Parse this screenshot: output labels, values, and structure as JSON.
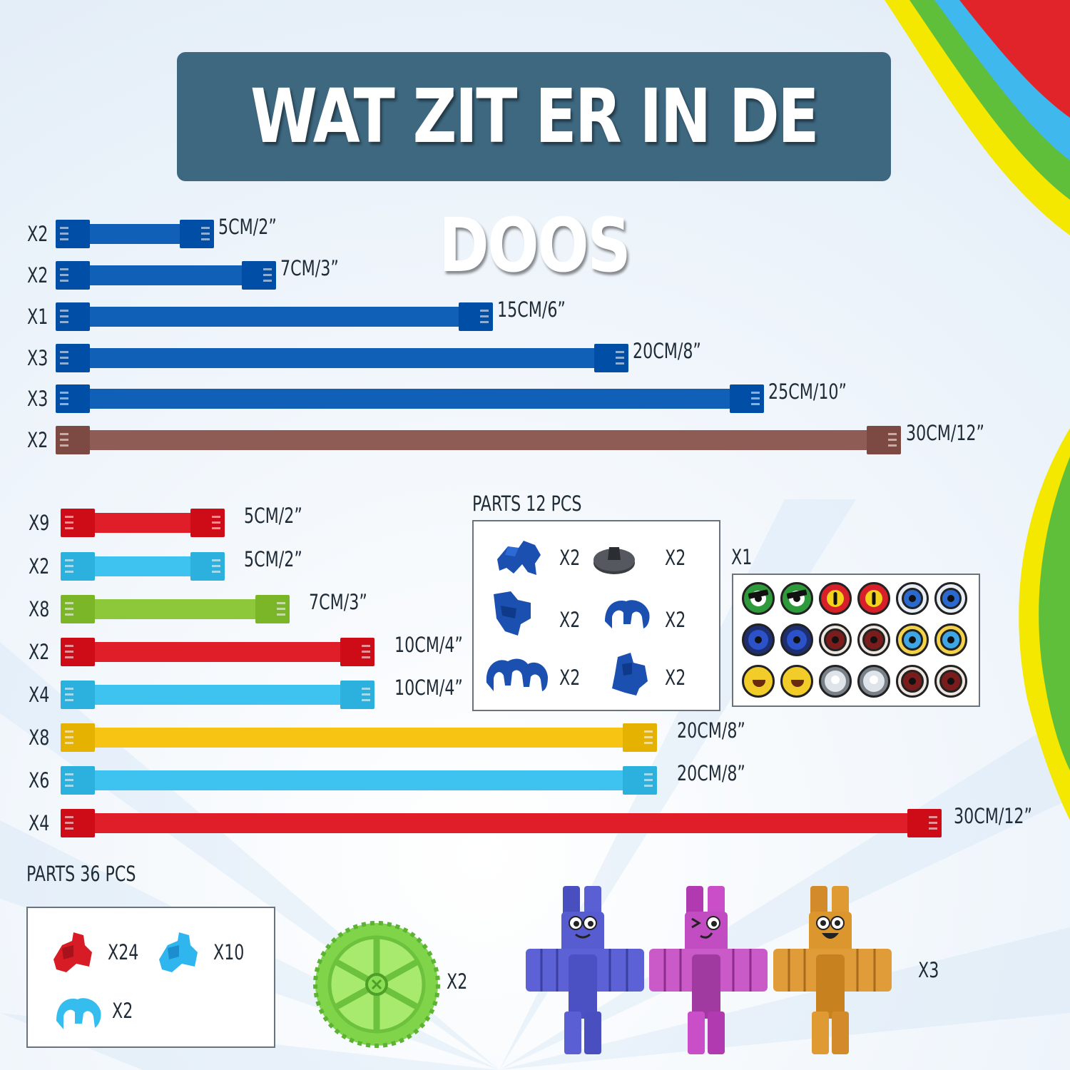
{
  "title": "WAT ZIT ER IN DE DOOS",
  "colors": {
    "blue": "#1060b8",
    "brown": "#8e5c54",
    "red": "#e01e2a",
    "light_blue": "#3ec3f0",
    "green": "#8cc83a",
    "yellow": "#f8c414",
    "title_bg": "#3e6880"
  },
  "rods_top": [
    {
      "qty": "X2",
      "length": "5CM/2”",
      "color": "blue"
    },
    {
      "qty": "X2",
      "length": "7CM/3”",
      "color": "blue"
    },
    {
      "qty": "X1",
      "length": "15CM/6”",
      "color": "blue"
    },
    {
      "qty": "X3",
      "length": "20CM/8”",
      "color": "blue"
    },
    {
      "qty": "X3",
      "length": "25CM/10”",
      "color": "blue"
    },
    {
      "qty": "X2",
      "length": "30CM/12”",
      "color": "brown"
    }
  ],
  "rods_bottom": [
    {
      "qty": "X9",
      "length": "5CM/2”",
      "color": "red"
    },
    {
      "qty": "X2",
      "length": "5CM/2”",
      "color": "light_blue"
    },
    {
      "qty": "X8",
      "length": "7CM/3”",
      "color": "green"
    },
    {
      "qty": "X2",
      "length": "10CM/4”",
      "color": "red"
    },
    {
      "qty": "X4",
      "length": "10CM/4”",
      "color": "light_blue"
    },
    {
      "qty": "X8",
      "length": "20CM/8”",
      "color": "yellow"
    },
    {
      "qty": "X6",
      "length": "20CM/8”",
      "color": "light_blue"
    },
    {
      "qty": "X4",
      "length": "30CM/12”",
      "color": "red"
    }
  ],
  "parts_12": {
    "label": "PARTS  12 PCS",
    "items": [
      {
        "icon": "blue-connector-icon",
        "qty": "X2"
      },
      {
        "icon": "grey-base-icon",
        "qty": "X2"
      },
      {
        "icon": "blue-clip-icon",
        "qty": "X2"
      },
      {
        "icon": "blue-hook-icon",
        "qty": "X2"
      },
      {
        "icon": "blue-double-hook-icon",
        "qty": "X2"
      },
      {
        "icon": "blue-joint-icon",
        "qty": "X2"
      }
    ]
  },
  "eyes_sheet": {
    "qty": "X1",
    "eyes": [
      "green-angry",
      "green-angry",
      "red-cat",
      "red-cat",
      "blue-ring",
      "blue-ring",
      "navy",
      "navy",
      "brown",
      "brown",
      "light-blue",
      "light-blue",
      "yellow-face",
      "yellow-face",
      "silver",
      "silver",
      "brown",
      "brown"
    ]
  },
  "parts_36": {
    "label": "PARTS  36 PCS",
    "items": [
      {
        "icon": "red-connector-icon",
        "qty": "X24"
      },
      {
        "icon": "light-blue-connector-icon",
        "qty": "X10"
      },
      {
        "icon": "light-blue-hook-icon",
        "qty": "X2"
      }
    ]
  },
  "wheel": {
    "qty": "X2"
  },
  "figures": {
    "qty": "X3"
  }
}
